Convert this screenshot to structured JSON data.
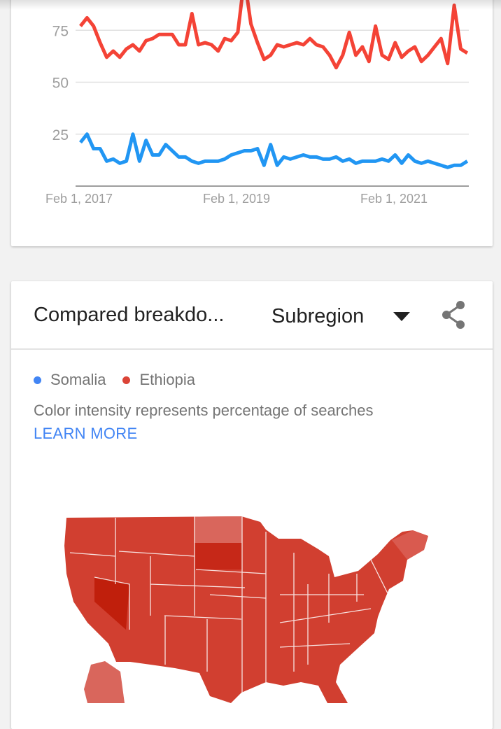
{
  "chart_data": {
    "type": "line",
    "x_tick_labels": [
      "Feb 1, 2017",
      "Feb 1, 2019",
      "Feb 1, 2021"
    ],
    "x_range": [
      "2017-02",
      "2022-01"
    ],
    "y_ticks": [
      25,
      50,
      75
    ],
    "ylim": [
      0,
      100
    ],
    "grid": true,
    "series": [
      {
        "name": "Somalia",
        "color": "#2196f3",
        "values": [
          21,
          25,
          18,
          18,
          12,
          13,
          11,
          12,
          25,
          12,
          22,
          15,
          15,
          20,
          17,
          14,
          14,
          12,
          11,
          12,
          12,
          12,
          13,
          15,
          16,
          17,
          17,
          18,
          10,
          20,
          10,
          14,
          13,
          14,
          15,
          14,
          14,
          13,
          13,
          14,
          12,
          13,
          11,
          12,
          12,
          12,
          13,
          12,
          15,
          11,
          15,
          12,
          11,
          12,
          11,
          10,
          9,
          10,
          10,
          12
        ]
      },
      {
        "name": "Ethiopia",
        "color": "#f44336",
        "values": [
          77,
          81,
          77,
          69,
          62,
          65,
          62,
          66,
          68,
          65,
          70,
          71,
          73,
          73,
          73,
          68,
          68,
          83,
          68,
          69,
          68,
          65,
          71,
          70,
          74,
          100,
          78,
          69,
          61,
          63,
          68,
          67,
          68,
          69,
          68,
          71,
          68,
          67,
          63,
          57,
          63,
          74,
          63,
          67,
          60,
          77,
          63,
          61,
          69,
          62,
          65,
          67,
          60,
          63,
          67,
          71,
          59,
          87,
          66,
          64
        ]
      }
    ]
  },
  "breakdown": {
    "title": "Compared breakdo...",
    "dropdown_value": "Subregion",
    "legend": [
      {
        "label": "Somalia",
        "color": "#4285f4"
      },
      {
        "label": "Ethiopia",
        "color": "#db4437"
      }
    ],
    "note": "Color intensity represents percentage of searches",
    "learn_more": "LEARN MORE",
    "share_icon": "share-icon"
  }
}
